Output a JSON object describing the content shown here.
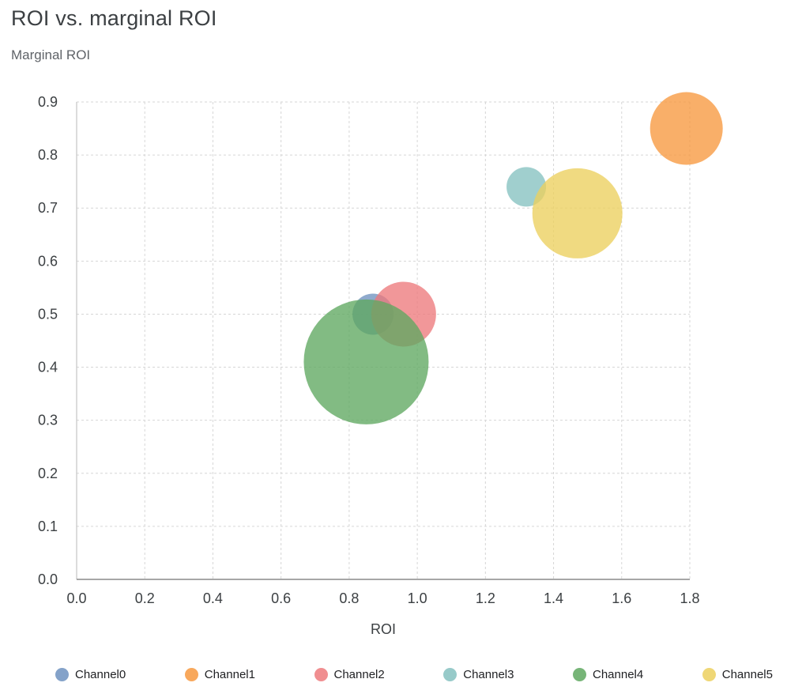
{
  "page": {
    "title": "ROI vs. marginal ROI",
    "y_axis_label": "Marginal ROI",
    "x_axis_label": "ROI"
  },
  "chart_data": {
    "type": "scatter",
    "subtype": "bubble",
    "title": "ROI vs. marginal ROI",
    "xlabel": "ROI",
    "ylabel": "Marginal ROI",
    "xlim": [
      0.0,
      1.8
    ],
    "ylim": [
      0.0,
      0.9
    ],
    "x_tick_labels": [
      "0.0",
      "0.2",
      "0.4",
      "0.6",
      "0.8",
      "1.0",
      "1.2",
      "1.4",
      "1.6",
      "1.8"
    ],
    "y_tick_labels": [
      "0.0",
      "0.1",
      "0.2",
      "0.3",
      "0.4",
      "0.5",
      "0.6",
      "0.7",
      "0.8",
      "0.9"
    ],
    "grid": true,
    "grid_style": "dashed",
    "legend_position": "bottom",
    "series": [
      {
        "name": "Channel0",
        "x": 0.87,
        "y": 0.5,
        "radius_px": 26,
        "color": "#6f92bf"
      },
      {
        "name": "Channel1",
        "x": 1.79,
        "y": 0.85,
        "radius_px": 46,
        "color": "#f7993f"
      },
      {
        "name": "Channel2",
        "x": 0.96,
        "y": 0.5,
        "radius_px": 41,
        "color": "#ed7a7c"
      },
      {
        "name": "Channel3",
        "x": 1.32,
        "y": 0.74,
        "radius_px": 25,
        "color": "#85c1c0"
      },
      {
        "name": "Channel4",
        "x": 0.85,
        "y": 0.41,
        "radius_px": 79,
        "color": "#5fa860"
      },
      {
        "name": "Channel5",
        "x": 1.47,
        "y": 0.69,
        "radius_px": 57,
        "color": "#ecd05e"
      }
    ],
    "colors": {
      "grid": "#d6d6d6",
      "axis_left": "#c4c4c4",
      "axis_bottom": "#8a8a8a",
      "tick_text": "#3c4043"
    }
  }
}
